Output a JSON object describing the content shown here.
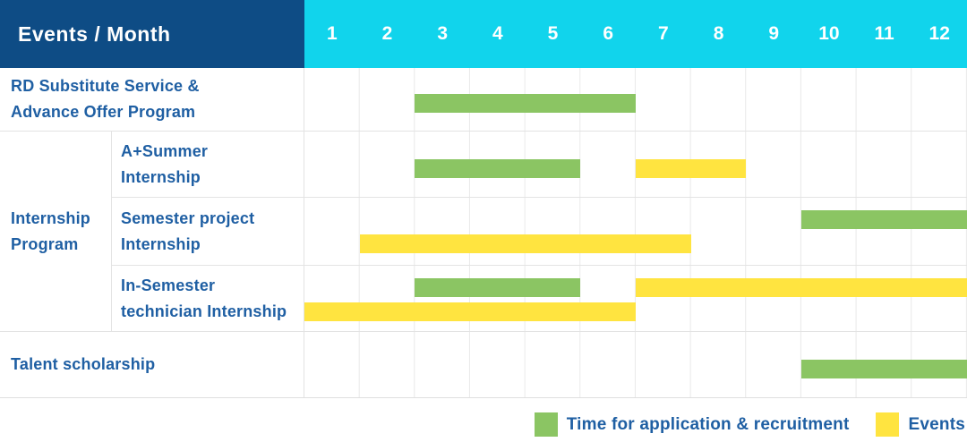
{
  "header": {
    "title": "Events / Month",
    "months": [
      "1",
      "2",
      "3",
      "4",
      "5",
      "6",
      "7",
      "8",
      "9",
      "10",
      "11",
      "12"
    ]
  },
  "colors": {
    "header_bg": "#0e4c85",
    "months_bg": "#11d4ec",
    "recruitment_green": "#8bc563",
    "events_yellow": "#ffe440",
    "label_text": "#1f5fa3",
    "grid_line": "#e9e9e9"
  },
  "table": {
    "group_label_lines": [
      "Internship",
      "Program"
    ],
    "rows": [
      {
        "label_lines": [
          "RD Substitute Service &",
          "Advance Offer Program"
        ],
        "lanes": 1,
        "bars": [
          {
            "color": "green",
            "start": 3,
            "end": 6,
            "lane": 0
          }
        ]
      },
      {
        "label_lines": [
          "A+Summer",
          "Internship"
        ],
        "lanes": 1,
        "bars": [
          {
            "color": "green",
            "start": 3,
            "end": 5,
            "lane": 0
          },
          {
            "color": "yellow",
            "start": 7,
            "end": 8,
            "lane": 0
          }
        ]
      },
      {
        "label_lines": [
          "Semester project",
          "Internship"
        ],
        "lanes": 2,
        "bars": [
          {
            "color": "green",
            "start": 10,
            "end": 12,
            "lane": 0
          },
          {
            "color": "yellow",
            "start": 2,
            "end": 7,
            "lane": 1
          }
        ]
      },
      {
        "label_lines": [
          "In-Semester",
          "technician Internship"
        ],
        "lanes": 2,
        "bars": [
          {
            "color": "green",
            "start": 3,
            "end": 5,
            "lane": 0
          },
          {
            "color": "yellow",
            "start": 7,
            "end": 12,
            "lane": 0
          },
          {
            "color": "yellow",
            "start": 1,
            "end": 6,
            "lane": 1
          }
        ]
      },
      {
        "label_lines": [
          "Talent scholarship"
        ],
        "lanes": 1,
        "bars": [
          {
            "color": "green",
            "start": 10,
            "end": 12,
            "lane": 0
          }
        ]
      }
    ]
  },
  "legend": {
    "items": [
      {
        "color_key": "recruitment_green",
        "label": "Time for application & recruitment"
      },
      {
        "color_key": "events_yellow",
        "label": "Events"
      }
    ]
  },
  "chart_data": {
    "type": "bar",
    "variant": "gantt-timeline",
    "title": "Events / Month",
    "xlabel": "Month",
    "x_ticks": [
      1,
      2,
      3,
      4,
      5,
      6,
      7,
      8,
      9,
      10,
      11,
      12
    ],
    "x_range": [
      1,
      12
    ],
    "grid": true,
    "legend_position": "bottom-right",
    "legend": [
      "Time for application & recruitment",
      "Events"
    ],
    "rows": [
      {
        "category": "RD Substitute Service & Advance Offer Program",
        "group": null,
        "segments": [
          {
            "series": "Time for application & recruitment",
            "start_month": 3,
            "end_month": 6
          }
        ]
      },
      {
        "category": "A+Summer Internship",
        "group": "Internship Program",
        "segments": [
          {
            "series": "Time for application & recruitment",
            "start_month": 3,
            "end_month": 5
          },
          {
            "series": "Events",
            "start_month": 7,
            "end_month": 8
          }
        ]
      },
      {
        "category": "Semester project Internship",
        "group": "Internship Program",
        "segments": [
          {
            "series": "Time for application & recruitment",
            "start_month": 10,
            "end_month": 12
          },
          {
            "series": "Events",
            "start_month": 2,
            "end_month": 7
          }
        ]
      },
      {
        "category": "In-Semester technician Internship",
        "group": "Internship Program",
        "segments": [
          {
            "series": "Time for application & recruitment",
            "start_month": 3,
            "end_month": 5
          },
          {
            "series": "Events",
            "start_month": 7,
            "end_month": 12
          },
          {
            "series": "Events",
            "start_month": 1,
            "end_month": 6
          }
        ]
      },
      {
        "category": "Talent scholarship",
        "group": null,
        "segments": [
          {
            "series": "Time for application & recruitment",
            "start_month": 10,
            "end_month": 12
          }
        ]
      }
    ]
  }
}
